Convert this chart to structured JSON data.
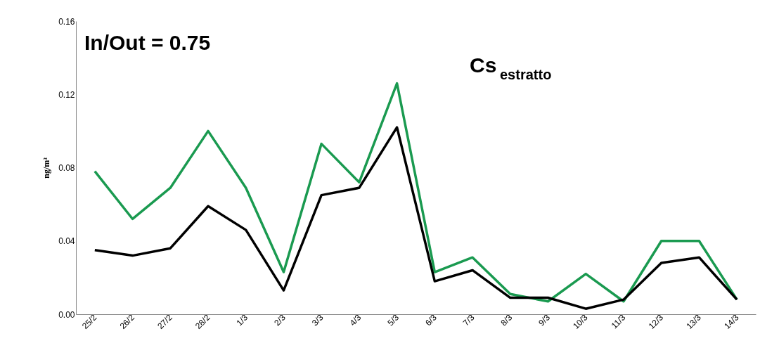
{
  "chart_data": {
    "type": "line",
    "title": "Cs$_{estratto}$",
    "annotations": [
      "In/Out = 0.75"
    ],
    "ylabel": "ng/m³",
    "categories": [
      "25/2",
      "26/2",
      "27/2",
      "28/2",
      "1/3",
      "2/3",
      "3/3",
      "4/3",
      "5/3",
      "6/3",
      "7/3",
      "8/3",
      "9/3",
      "10/3",
      "11/3",
      "12/3",
      "13/3",
      "14/3"
    ],
    "series": [
      {
        "color": "#1a9a50",
        "values": [
          0.078,
          0.052,
          0.069,
          0.1,
          0.069,
          0.023,
          0.093,
          0.072,
          0.126,
          0.023,
          0.031,
          0.011,
          0.007,
          0.022,
          0.007,
          0.04,
          0.04,
          0.008
        ]
      },
      {
        "color": "#000000",
        "values": [
          0.035,
          0.032,
          0.036,
          0.059,
          0.046,
          0.013,
          0.065,
          0.069,
          0.102,
          0.018,
          0.024,
          0.009,
          0.009,
          0.003,
          0.008,
          0.028,
          0.031,
          0.008
        ]
      }
    ],
    "ylim": [
      0,
      0.16
    ],
    "yticks": [
      {
        "value": 0,
        "label": "0.00"
      },
      {
        "value": 0.04,
        "label": "0.04"
      },
      {
        "value": 0.08,
        "label": "0.08"
      },
      {
        "value": 0.12,
        "label": "0.12"
      },
      {
        "value": 0.16,
        "label": "0.16"
      }
    ],
    "grid": false,
    "marker": "none",
    "line_style": "solid"
  }
}
